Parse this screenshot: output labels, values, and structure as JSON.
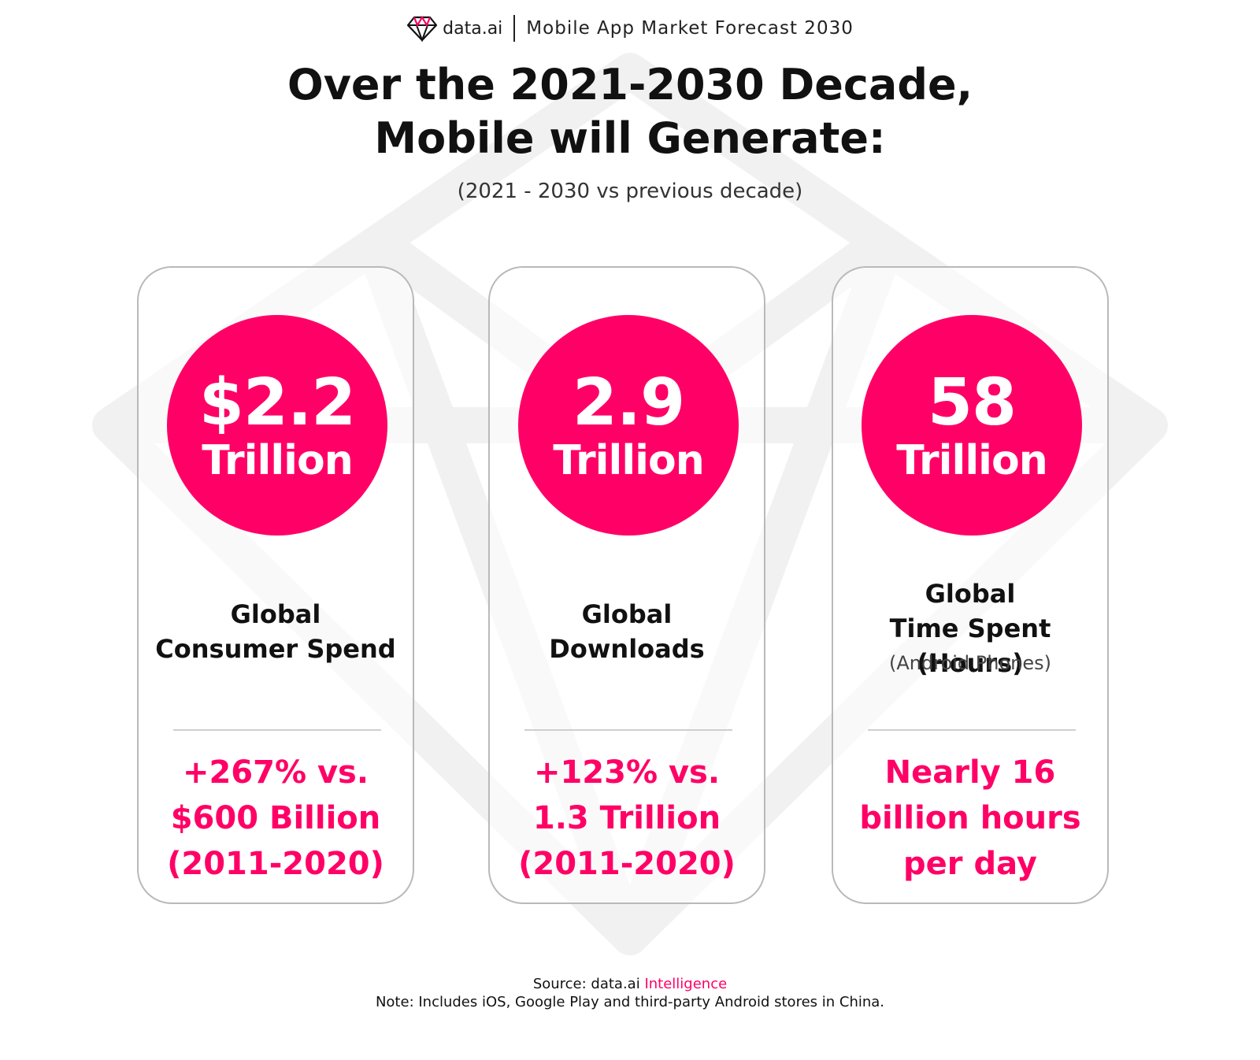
{
  "header": {
    "brand": "data.ai",
    "report_title": "Mobile App Market Forecast 2030"
  },
  "headline": {
    "line1": "Over the 2021-2030 Decade,",
    "line2": "Mobile will Generate:"
  },
  "subheadline": "(2021 - 2030 vs previous decade)",
  "colors": {
    "accent": "#ff0066",
    "text": "#111111",
    "card_border": "#b9b9b9"
  },
  "cards": [
    {
      "value": "$2.2",
      "unit": "Trillion",
      "label_line1": "Global",
      "label_line2": "Consumer Spend",
      "note": "",
      "comparison_line1": "+267% vs.",
      "comparison_line2": "$600 Billion",
      "comparison_line3": "(2011-2020)"
    },
    {
      "value": "2.9",
      "unit": "Trillion",
      "label_line1": "Global",
      "label_line2": "Downloads",
      "note": "",
      "comparison_line1": "+123% vs.",
      "comparison_line2": "1.3 Trillion",
      "comparison_line3": "(2011-2020)"
    },
    {
      "value": "58",
      "unit": "Trillion",
      "label_line1": "Global",
      "label_line2": "Time Spent (Hours)",
      "note": "(Android Phones)",
      "comparison_line1": "Nearly 16",
      "comparison_line2": "billion hours",
      "comparison_line3": "per day"
    }
  ],
  "footer": {
    "source_prefix": "Source: data.ai ",
    "source_highlight": "Intelligence",
    "note": "Note: Includes iOS, Google Play and third-party Android stores in China."
  }
}
